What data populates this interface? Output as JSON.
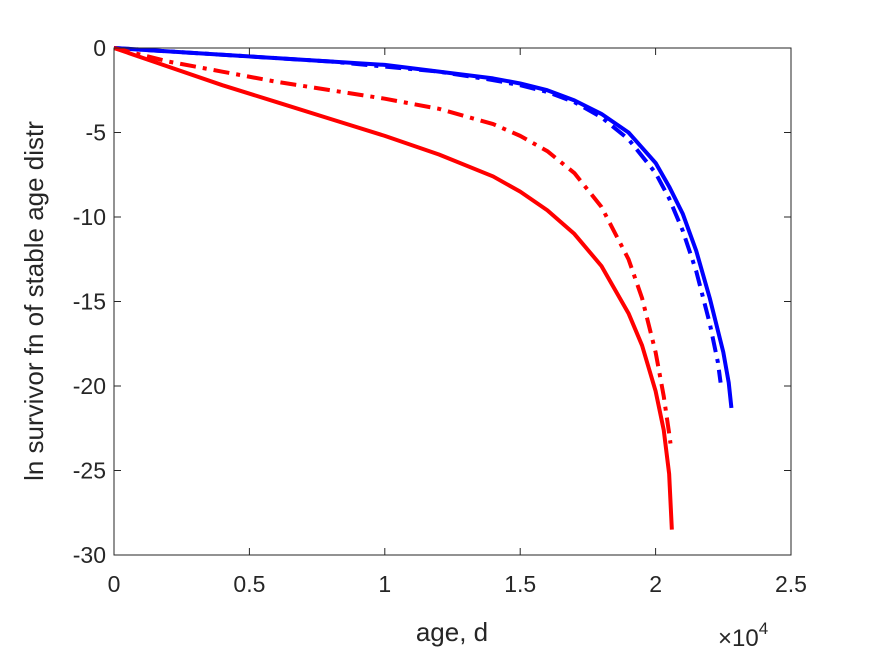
{
  "chart_data": {
    "type": "line",
    "xlabel": "age, d",
    "ylabel": "ln survivor fn of stable age distr",
    "xlim": [
      0,
      25000
    ],
    "ylim": [
      -30,
      0
    ],
    "x_multiplier": {
      "prefix": "×10",
      "exponent": "4"
    },
    "x_ticks": [
      {
        "value": 0,
        "label": "0"
      },
      {
        "value": 5000,
        "label": "0.5"
      },
      {
        "value": 10000,
        "label": "1"
      },
      {
        "value": 15000,
        "label": "1.5"
      },
      {
        "value": 20000,
        "label": "2"
      },
      {
        "value": 25000,
        "label": "2.5"
      }
    ],
    "y_ticks": [
      {
        "value": 0,
        "label": "0"
      },
      {
        "value": -5,
        "label": "-5"
      },
      {
        "value": -10,
        "label": "-10"
      },
      {
        "value": -15,
        "label": "-15"
      },
      {
        "value": -20,
        "label": "-20"
      },
      {
        "value": -25,
        "label": "-25"
      },
      {
        "value": -30,
        "label": "-30"
      }
    ],
    "grid": false,
    "legend": "none",
    "series": [
      {
        "color": "#0000ff",
        "style": "solid",
        "x": [
          0,
          2000,
          4000,
          6000,
          8000,
          10000,
          12000,
          14000,
          15000,
          16000,
          17000,
          18000,
          19000,
          20000,
          20500,
          21000,
          21500,
          22000,
          22500,
          22700,
          22800
        ],
        "y": [
          0,
          -0.2,
          -0.4,
          -0.6,
          -0.8,
          -1.0,
          -1.4,
          -1.8,
          -2.1,
          -2.5,
          -3.1,
          -3.9,
          -5.0,
          -6.8,
          -8.2,
          -9.8,
          -12.0,
          -14.8,
          -18.0,
          -19.8,
          -21.3
        ]
      },
      {
        "color": "#0000ff",
        "style": "dashdot",
        "x": [
          0,
          2000,
          4000,
          6000,
          8000,
          10000,
          12000,
          14000,
          15000,
          16000,
          17000,
          18000,
          19000,
          20000,
          20500,
          21000,
          21500,
          22000,
          22300,
          22400
        ],
        "y": [
          0,
          -0.2,
          -0.4,
          -0.6,
          -0.8,
          -1.1,
          -1.4,
          -1.9,
          -2.2,
          -2.6,
          -3.2,
          -4.1,
          -5.4,
          -7.4,
          -8.9,
          -10.8,
          -13.2,
          -16.3,
          -18.6,
          -19.8
        ]
      },
      {
        "color": "#ff0000",
        "style": "dashdot",
        "x": [
          0,
          1000,
          2000,
          4000,
          6000,
          8000,
          10000,
          12000,
          14000,
          15000,
          16000,
          17000,
          18000,
          19000,
          19500,
          20000,
          20300,
          20500,
          20550
        ],
        "y": [
          0,
          -0.4,
          -0.8,
          -1.4,
          -2.0,
          -2.5,
          -3.0,
          -3.6,
          -4.5,
          -5.2,
          -6.1,
          -7.4,
          -9.4,
          -12.5,
          -14.8,
          -18.0,
          -20.6,
          -22.8,
          -23.4
        ]
      },
      {
        "color": "#ff0000",
        "style": "solid",
        "x": [
          0,
          2000,
          4000,
          6000,
          8000,
          10000,
          12000,
          14000,
          15000,
          16000,
          17000,
          18000,
          19000,
          19500,
          20000,
          20300,
          20500,
          20600
        ],
        "y": [
          0,
          -1.1,
          -2.2,
          -3.2,
          -4.2,
          -5.2,
          -6.3,
          -7.6,
          -8.5,
          -9.6,
          -11.0,
          -12.9,
          -15.7,
          -17.6,
          -20.3,
          -22.6,
          -25.2,
          -28.5
        ]
      }
    ]
  }
}
